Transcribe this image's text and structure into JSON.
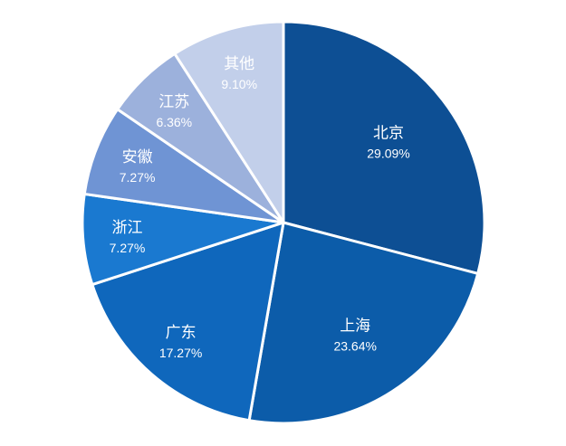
{
  "chart_data": {
    "type": "pie",
    "categories": [
      "北京",
      "上海",
      "广东",
      "浙江",
      "安徽",
      "江苏",
      "其他"
    ],
    "values": [
      29.09,
      23.64,
      17.27,
      7.27,
      7.27,
      6.36,
      9.1
    ],
    "value_labels": [
      "29.09%",
      "23.64%",
      "17.27%",
      "7.27%",
      "7.27%",
      "6.36%",
      "9.10%"
    ],
    "colors": [
      "#0d4f94",
      "#0c5ca9",
      "#0f67bc",
      "#1a79d0",
      "#6f94d4",
      "#9cb1dc",
      "#c2cfea"
    ],
    "start_angle": "12 o'clock",
    "direction": "clockwise",
    "legend": "none"
  }
}
